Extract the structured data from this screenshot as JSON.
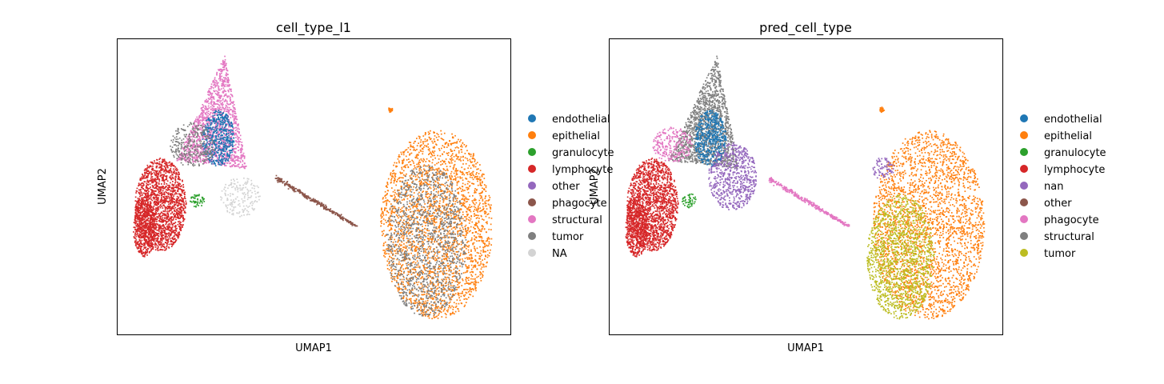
{
  "chart_data": [
    {
      "type": "scatter",
      "title": "cell_type_l1",
      "xlabel": "UMAP1",
      "ylabel": "UMAP2",
      "legend_position": "right",
      "legend": [
        {
          "label": "endothelial",
          "color": "#1f77b4"
        },
        {
          "label": "epithelial",
          "color": "#ff7f0e"
        },
        {
          "label": "granulocyte",
          "color": "#2ca02c"
        },
        {
          "label": "lymphocyte",
          "color": "#d62728"
        },
        {
          "label": "other",
          "color": "#9467bd"
        },
        {
          "label": "phagocyte",
          "color": "#8c564b"
        },
        {
          "label": "structural",
          "color": "#e377c2"
        },
        {
          "label": "tumor",
          "color": "#7f7f7f"
        },
        {
          "label": "NA",
          "color": "#d3d3d3"
        }
      ]
    },
    {
      "type": "scatter",
      "title": "pred_cell_type",
      "xlabel": "UMAP1",
      "ylabel": "UMAP2",
      "legend_position": "right",
      "legend": [
        {
          "label": "endothelial",
          "color": "#1f77b4"
        },
        {
          "label": "epithelial",
          "color": "#ff7f0e"
        },
        {
          "label": "granulocyte",
          "color": "#2ca02c"
        },
        {
          "label": "lymphocyte",
          "color": "#d62728"
        },
        {
          "label": "nan",
          "color": "#9467bd"
        },
        {
          "label": "other",
          "color": "#8c564b"
        },
        {
          "label": "phagocyte",
          "color": "#e377c2"
        },
        {
          "label": "structural",
          "color": "#7f7f7f"
        },
        {
          "label": "tumor",
          "color": "#bcbd22"
        }
      ]
    }
  ]
}
